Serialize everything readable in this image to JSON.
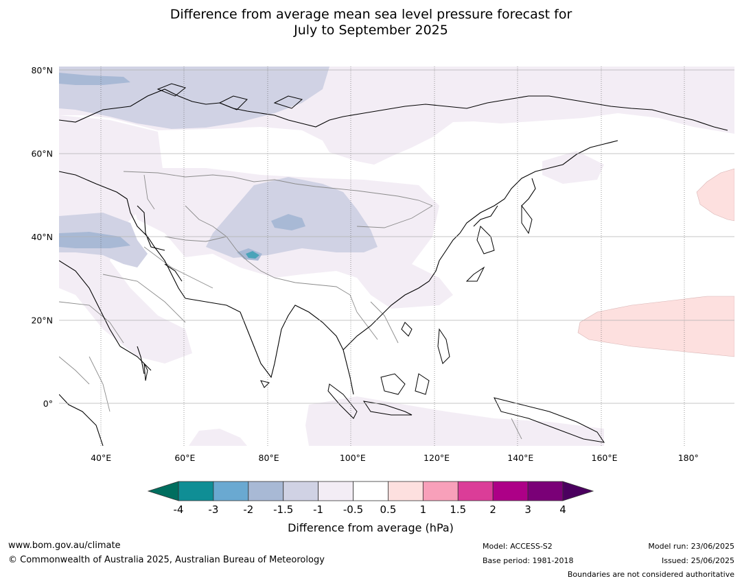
{
  "title": {
    "line1": "Difference from average mean sea level pressure forecast for",
    "line2": "July to September 2025"
  },
  "map": {
    "lon_range": [
      30,
      191
    ],
    "lat_range": [
      -10,
      81
    ],
    "lat_labels": [
      {
        "value": 80,
        "label": "80°N"
      },
      {
        "value": 60,
        "label": "60°N"
      },
      {
        "value": 40,
        "label": "40°N"
      },
      {
        "value": 20,
        "label": "20°N"
      },
      {
        "value": 0,
        "label": "0°"
      }
    ],
    "lon_labels": [
      {
        "value": 40,
        "label": "40°E"
      },
      {
        "value": 60,
        "label": "60°E"
      },
      {
        "value": 80,
        "label": "80°E"
      },
      {
        "value": 100,
        "label": "100°E"
      },
      {
        "value": 120,
        "label": "120°E"
      },
      {
        "value": 140,
        "label": "140°E"
      },
      {
        "value": 160,
        "label": "160°E"
      },
      {
        "value": 180,
        "label": "180°"
      }
    ]
  },
  "colorbar": {
    "title": "Difference from average (hPa)",
    "ticks": [
      "-4",
      "-3",
      "-2",
      "-1.5",
      "-1",
      "-0.5",
      "0.5",
      "1",
      "1.5",
      "2",
      "3",
      "4"
    ],
    "colors": [
      "#0f8e95",
      "#6aa9d1",
      "#a8b9d5",
      "#d0d2e4",
      "#f3edf5",
      "#ffffff",
      "#fde0df",
      "#f8a0ba",
      "#db3d98",
      "#ad0087",
      "#7a0077"
    ],
    "low_extend_color": "#006e5f",
    "high_extend_color": "#4b005f"
  },
  "footer": {
    "website": "www.bom.gov.au/climate",
    "copyright": "© Commonwealth of Australia 2025, Australian Bureau of Meteorology",
    "model": "Model: ACCESS-S2",
    "base_period": "Base period: 1981-2018",
    "model_run": "Model run: 23/06/2025",
    "issued": "Issued: 25/06/2025",
    "disclaimer": "Boundaries are not considered authoritative"
  }
}
